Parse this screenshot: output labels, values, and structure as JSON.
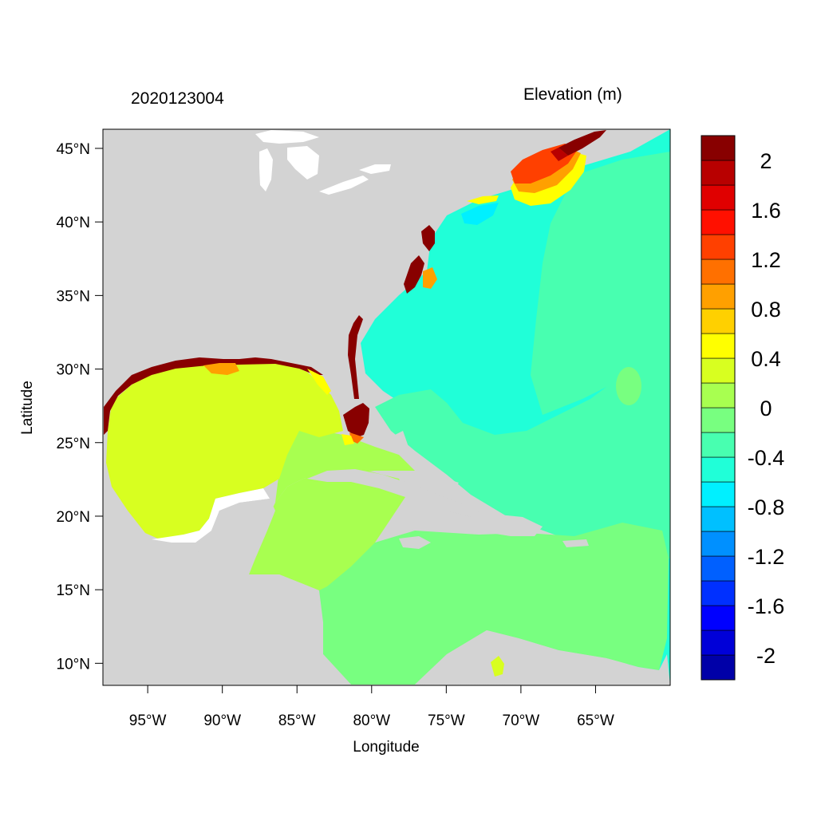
{
  "chart_data": {
    "type": "heatmap",
    "title_left": "2020123004",
    "title_right": "Elevation (m)",
    "xlabel": "Longitude",
    "ylabel": "Latitude",
    "xlim": [
      -98,
      -60
    ],
    "ylim": [
      8.5,
      46.3
    ],
    "x_ticks": [
      {
        "value": -95,
        "label": "95°W"
      },
      {
        "value": -90,
        "label": "90°W"
      },
      {
        "value": -85,
        "label": "85°W"
      },
      {
        "value": -80,
        "label": "80°W"
      },
      {
        "value": -75,
        "label": "75°W"
      },
      {
        "value": -70,
        "label": "70°W"
      },
      {
        "value": -65,
        "label": "65°W"
      }
    ],
    "y_ticks": [
      {
        "value": 45,
        "label": "45°N"
      },
      {
        "value": 40,
        "label": "40°N"
      },
      {
        "value": 35,
        "label": "35°N"
      },
      {
        "value": 30,
        "label": "30°N"
      },
      {
        "value": 25,
        "label": "25°N"
      },
      {
        "value": 20,
        "label": "20°N"
      },
      {
        "value": 15,
        "label": "15°N"
      },
      {
        "value": 10,
        "label": "10°N"
      }
    ],
    "colorbar": {
      "min": -2.2,
      "max": 2.2,
      "bin_width": 0.2,
      "colors": [
        "#0000a8",
        "#0000d8",
        "#0000ff",
        "#0030ff",
        "#0060ff",
        "#0090ff",
        "#00c0ff",
        "#00f0ff",
        "#20ffd8",
        "#48ffb0",
        "#78ff80",
        "#a8ff50",
        "#d8ff20",
        "#ffff00",
        "#ffd000",
        "#ffa000",
        "#ff7000",
        "#ff4000",
        "#ff1000",
        "#e00000",
        "#b80000",
        "#880000"
      ],
      "tick_labels": [
        "2",
        "1.6",
        "1.2",
        "0.8",
        "0.4",
        "0",
        "-0.4",
        "-0.8",
        "-1.2",
        "-1.6",
        "-2"
      ],
      "tick_values": [
        2,
        1.6,
        1.2,
        0.8,
        0.4,
        0,
        -0.4,
        -0.8,
        -1.2,
        -1.6,
        -2
      ]
    },
    "colors": {
      "land": "#d3d3d3",
      "lake": "#ffffff"
    }
  }
}
